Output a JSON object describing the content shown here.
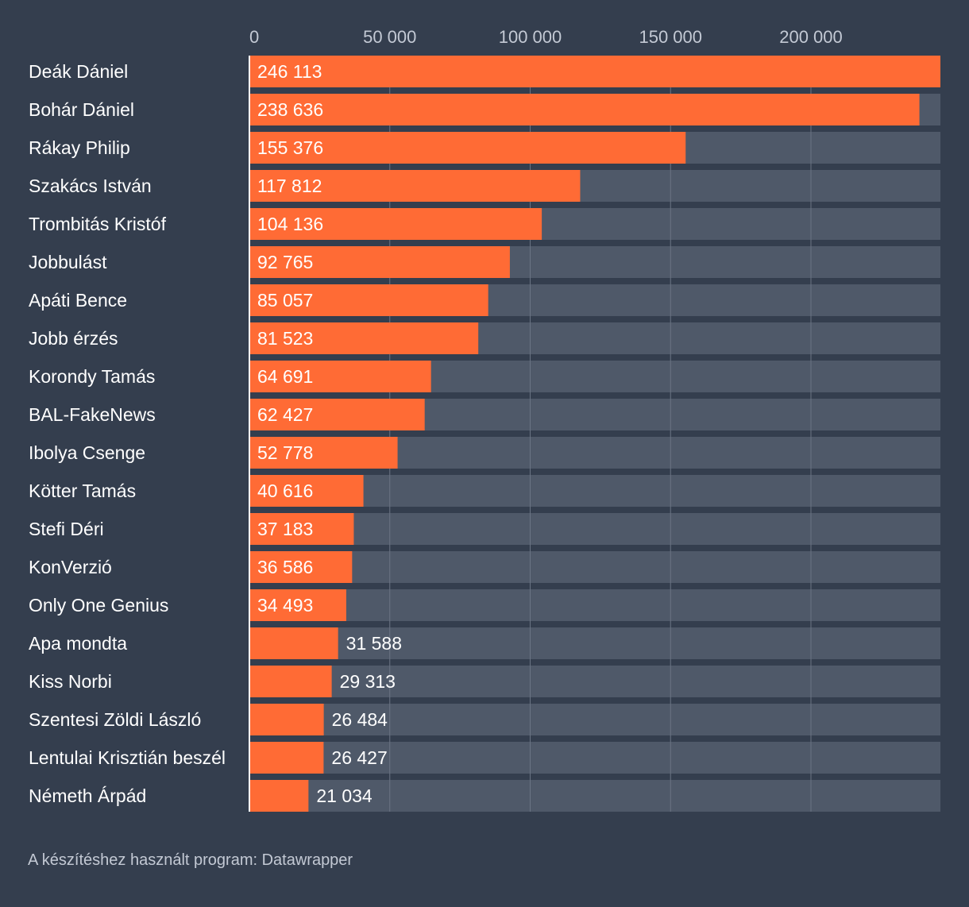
{
  "chart_data": {
    "type": "bar",
    "orientation": "horizontal",
    "title": "",
    "xlabel": "",
    "ylabel": "",
    "xlim": [
      0,
      246113
    ],
    "ticks": [
      0,
      50000,
      100000,
      150000,
      200000
    ],
    "tick_labels": [
      "0",
      "50 000",
      "100 000",
      "150 000",
      "200 000"
    ],
    "grid": true,
    "categories": [
      "Deák Dániel",
      "Bohár Dániel",
      "Rákay Philip",
      "Szakács István",
      "Trombitás Kristóf",
      "Jobbulást",
      "Apáti Bence",
      "Jobb érzés",
      "Korondy Tamás",
      "BAL-FakeNews",
      "Ibolya Csenge",
      "Kötter Tamás",
      "Stefi Déri",
      "KonVerzió",
      "Only One Genius",
      "Apa mondta",
      "Kiss Norbi",
      "Szentesi Zöldi László",
      "Lentulai Krisztián beszél",
      "Németh Árpád"
    ],
    "values": [
      246113,
      238636,
      155376,
      117812,
      104136,
      92765,
      85057,
      81523,
      64691,
      62427,
      52778,
      40616,
      37183,
      36586,
      34493,
      31588,
      29313,
      26484,
      26427,
      21034
    ],
    "value_labels": [
      "246 113",
      "238 636",
      "155 376",
      "117 812",
      "104 136",
      "92 765",
      "85 057",
      "81 523",
      "64 691",
      "62 427",
      "52 778",
      "40 616",
      "37 183",
      "36 586",
      "34 493",
      "31 588",
      "29 313",
      "26 484",
      "26 427",
      "21 034"
    ]
  },
  "colors": {
    "background": "#343e4e",
    "bar": "#ff6b35",
    "track": "#4f5969",
    "grid": "#6b7484"
  },
  "footer": "A készítéshez használt program: Datawrapper"
}
